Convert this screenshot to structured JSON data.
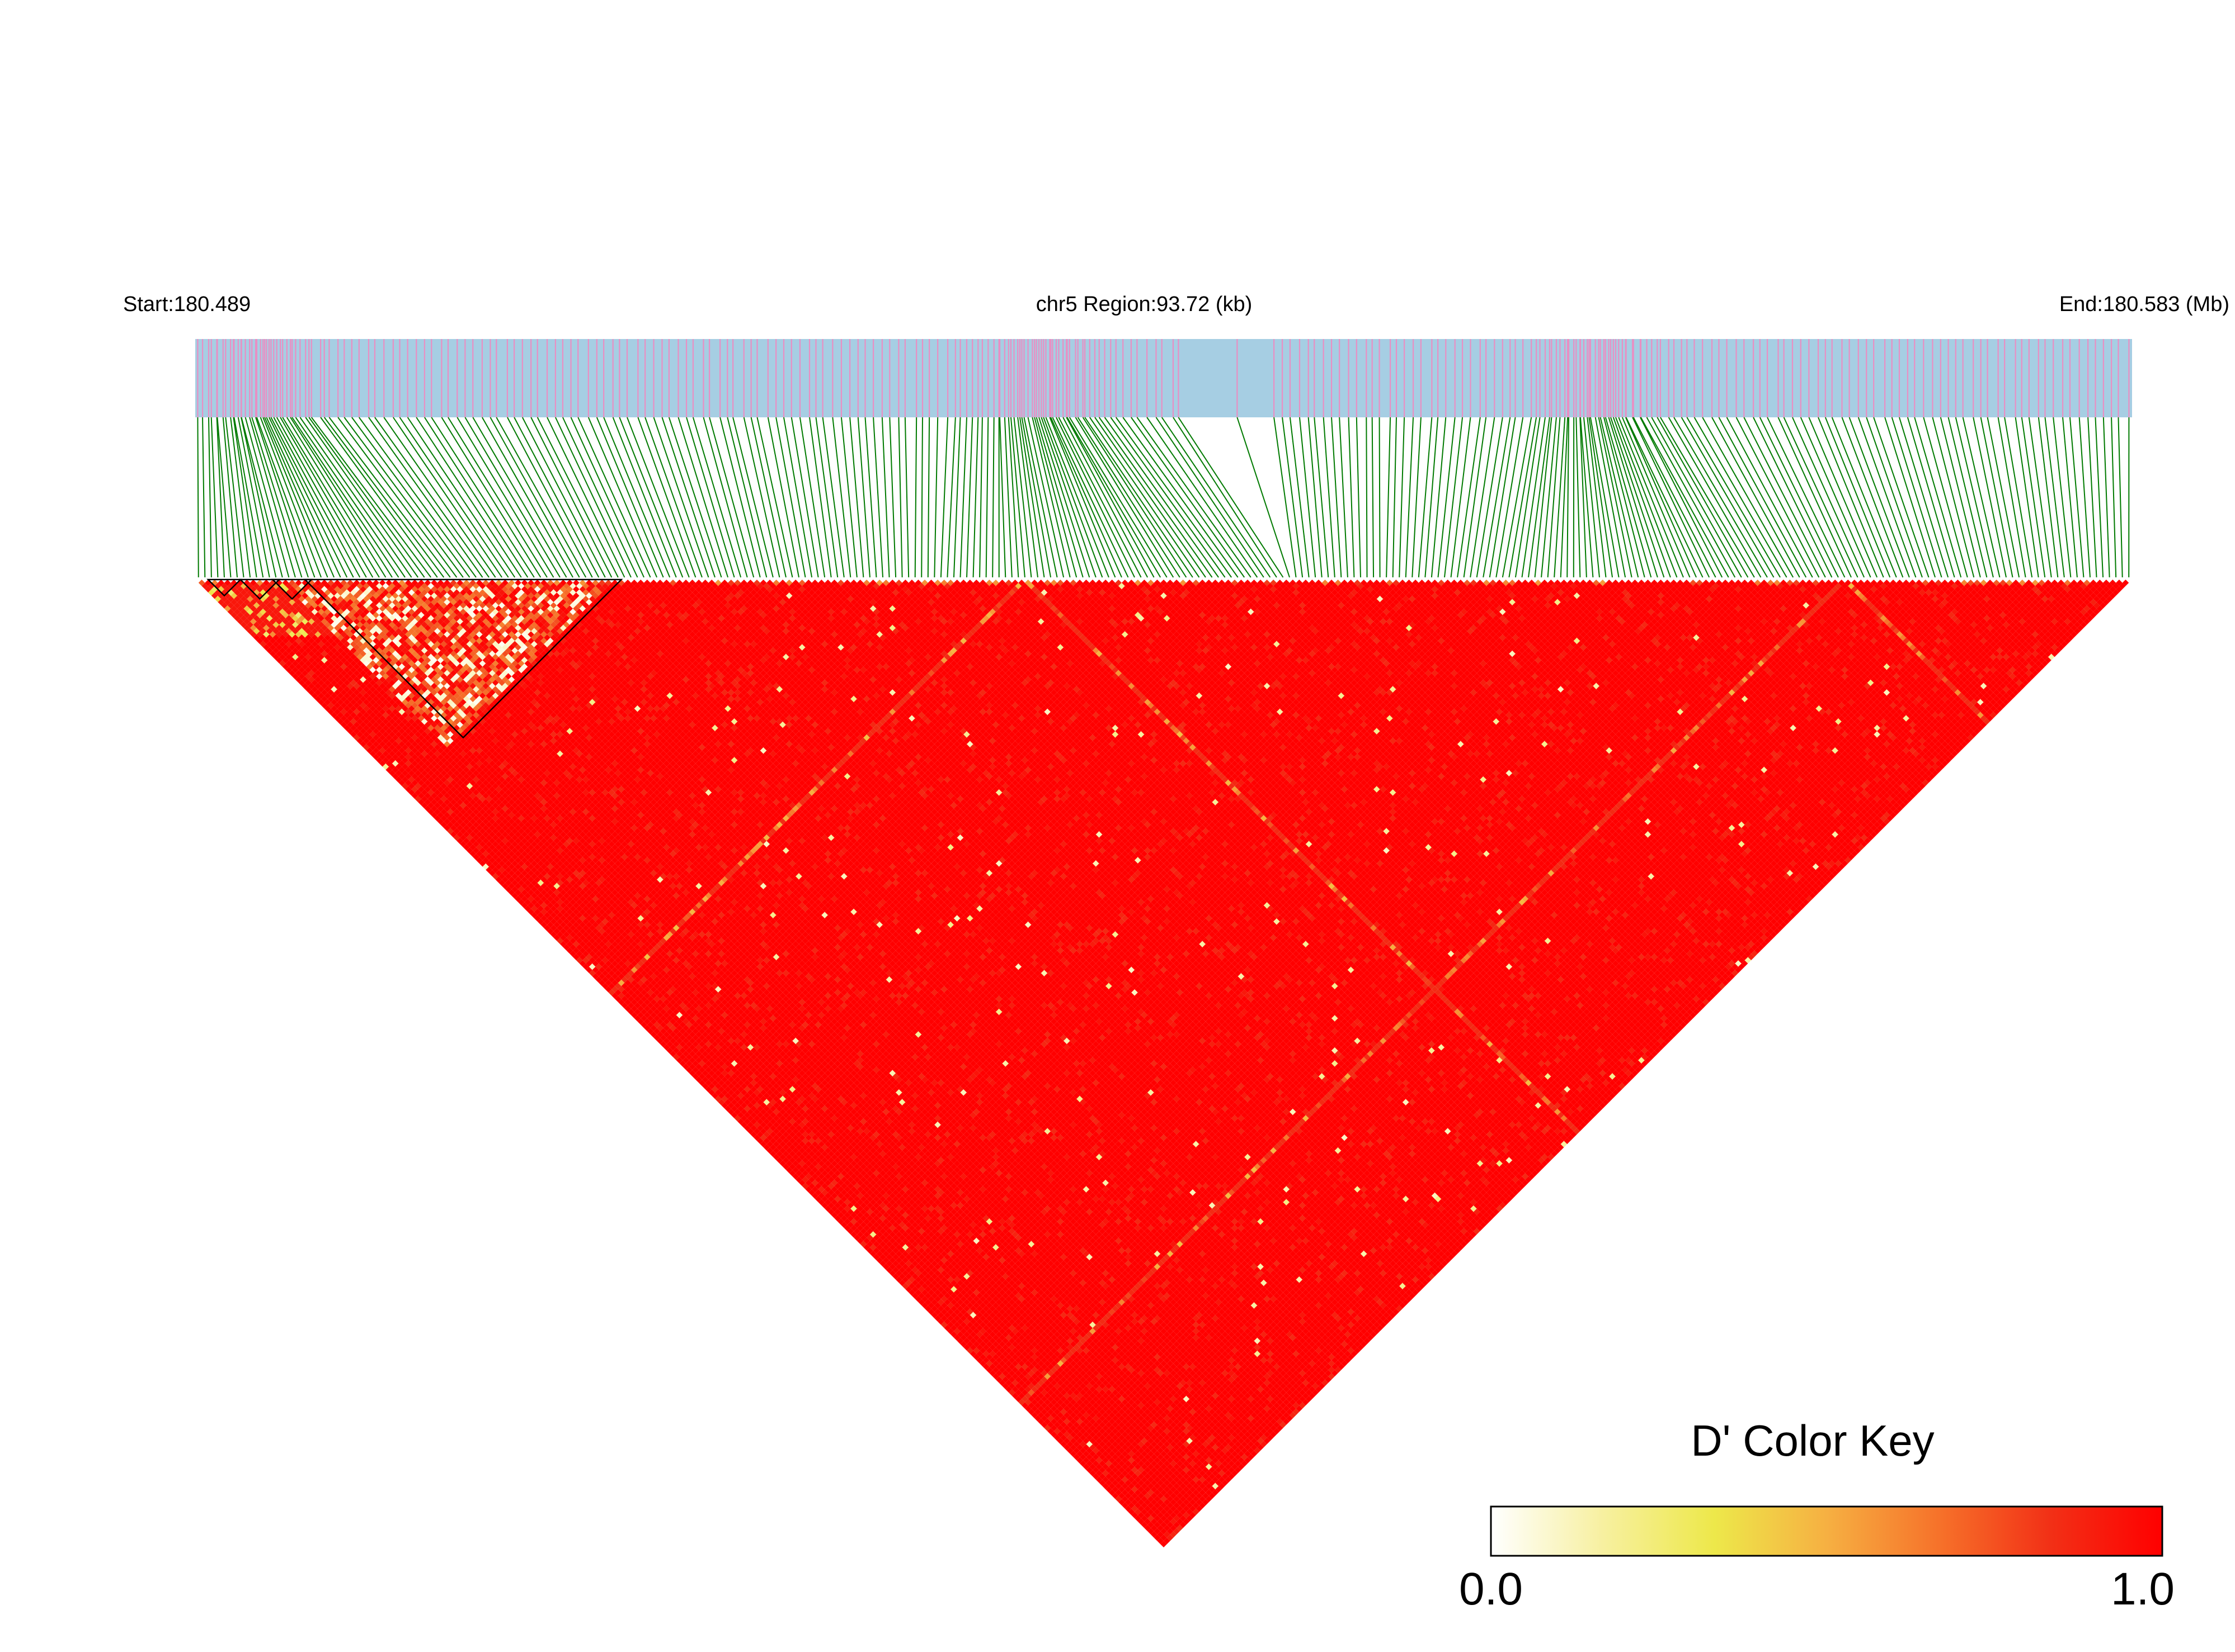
{
  "chart_data": {
    "type": "heatmap",
    "subtype": "linkage-disequilibrium-triangle",
    "metric": "D'",
    "header": {
      "start_label": "Start:180.489",
      "region_label": "chr5 Region:93.72 (kb)",
      "end_label": "End:180.583 (Mb)"
    },
    "region": {
      "chromosome": "chr5",
      "start_mb": 180.489,
      "end_mb": 180.583,
      "length_kb": 93.72
    },
    "snp_count": 300,
    "snp_track_colors": {
      "background": "#a6cee3",
      "snp_mark": "#e98fc3",
      "connector": "#007a00"
    },
    "dense_clusters_mb": [
      180.492,
      180.53,
      180.557
    ],
    "sparse_gap_mb": [
      180.537,
      180.541
    ],
    "haplotype_blocks_snp_index": [
      [
        2,
        6
      ],
      [
        7,
        12
      ],
      [
        12,
        17
      ],
      [
        17,
        65
      ]
    ],
    "ld_summary": {
      "dominant_value": 1.0,
      "low_ld_band_snp_index": [
        15,
        64
      ],
      "stripe_snp_index": [
        128,
        255
      ],
      "typical_values": [
        1.0,
        0.9,
        0.8,
        0.6,
        0.3,
        0.1
      ]
    },
    "color_key": {
      "title": "D' Color Key",
      "min_label": "0.0",
      "max_label": "1.0",
      "range": [
        0,
        1
      ],
      "stops": [
        "#ffffff",
        "#f7f0a0",
        "#ede84a",
        "#f6b042",
        "#f6722a",
        "#f23016",
        "#ff0000"
      ]
    }
  }
}
